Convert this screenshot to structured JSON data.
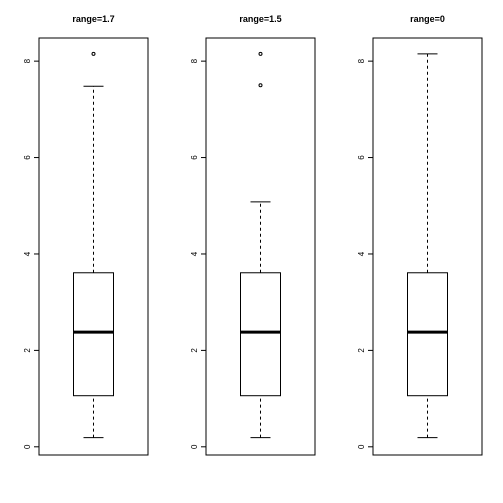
{
  "chart_data": [
    {
      "type": "box",
      "title": "range=1.7",
      "ylim": [
        -0.17,
        8.48
      ],
      "yticks": [
        0,
        2,
        4,
        6,
        8
      ],
      "whislo": 0.19,
      "q1": 1.06,
      "med": 2.38,
      "q3": 3.61,
      "whishi": 7.48,
      "fliers": [
        8.15
      ]
    },
    {
      "type": "box",
      "title": "range=1.5",
      "ylim": [
        -0.17,
        8.48
      ],
      "yticks": [
        0,
        2,
        4,
        6,
        8
      ],
      "whislo": 0.19,
      "q1": 1.06,
      "med": 2.38,
      "q3": 3.61,
      "whishi": 5.08,
      "fliers": [
        7.5,
        8.15
      ]
    },
    {
      "type": "box",
      "title": "range=0",
      "ylim": [
        -0.17,
        8.48
      ],
      "yticks": [
        0,
        2,
        4,
        6,
        8
      ],
      "whislo": 0.19,
      "q1": 1.06,
      "med": 2.38,
      "q3": 3.61,
      "whishi": 8.15,
      "fliers": []
    }
  ]
}
